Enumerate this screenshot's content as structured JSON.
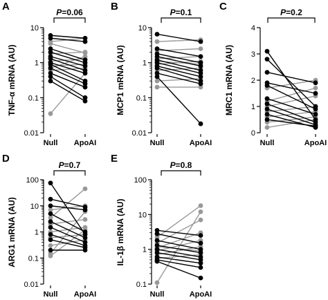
{
  "chart_data": [
    {
      "panel": "A",
      "type": "scatter",
      "ylabel": "TNF-α mRNA (AU)",
      "yscale": "log",
      "ylim": [
        0.01,
        10
      ],
      "yticks": [
        "10",
        "1",
        "0.1",
        "0.01"
      ],
      "categories": [
        "Null",
        "ApoAI"
      ],
      "p_label": "P",
      "p_value": "=0.06",
      "colors": {
        "black": "#000000",
        "gray": "#999999"
      },
      "pairs": [
        {
          "null": 6.0,
          "apoai": 5.0,
          "color": "black"
        },
        {
          "null": 5.0,
          "apoai": 4.0,
          "color": "black"
        },
        {
          "null": 4.0,
          "apoai": 5.0,
          "color": "gray"
        },
        {
          "null": 3.5,
          "apoai": 1.9,
          "color": "gray"
        },
        {
          "null": 2.5,
          "apoai": 1.2,
          "color": "black"
        },
        {
          "null": 2.0,
          "apoai": 1.0,
          "color": "black"
        },
        {
          "null": 1.8,
          "apoai": 2.0,
          "color": "gray"
        },
        {
          "null": 1.5,
          "apoai": 0.8,
          "color": "black"
        },
        {
          "null": 1.3,
          "apoai": 0.6,
          "color": "black"
        },
        {
          "null": 1.1,
          "apoai": 1.3,
          "color": "gray"
        },
        {
          "null": 1.0,
          "apoai": 0.5,
          "color": "black"
        },
        {
          "null": 0.9,
          "apoai": 0.3,
          "color": "black"
        },
        {
          "null": 0.8,
          "apoai": 0.9,
          "color": "gray"
        },
        {
          "null": 0.7,
          "apoai": 0.25,
          "color": "black"
        },
        {
          "null": 0.6,
          "apoai": 0.7,
          "color": "gray"
        },
        {
          "null": 0.5,
          "apoai": 0.2,
          "color": "black"
        },
        {
          "null": 0.4,
          "apoai": 0.1,
          "color": "black"
        },
        {
          "null": 0.3,
          "apoai": 0.08,
          "color": "black"
        },
        {
          "null": 0.7,
          "apoai": 1.5,
          "color": "gray"
        },
        {
          "null": 0.035,
          "apoai": 0.5,
          "color": "gray"
        }
      ]
    },
    {
      "panel": "B",
      "type": "scatter",
      "ylabel": "MCP1 mRNA (AU)",
      "yscale": "log",
      "ylim": [
        0.01,
        10
      ],
      "yticks": [
        "10",
        "1",
        "0.1",
        "0.01"
      ],
      "categories": [
        "Null",
        "ApoAI"
      ],
      "p_label": "P",
      "p_value": "=0.1",
      "colors": {
        "black": "#000000",
        "gray": "#999999"
      },
      "pairs": [
        {
          "null": 6.5,
          "apoai": 4.0,
          "color": "black"
        },
        {
          "null": 4.0,
          "apoai": 4.5,
          "color": "gray"
        },
        {
          "null": 2.5,
          "apoai": 1.5,
          "color": "black"
        },
        {
          "null": 2.2,
          "apoai": 2.5,
          "color": "gray"
        },
        {
          "null": 1.8,
          "apoai": 1.0,
          "color": "black"
        },
        {
          "null": 1.5,
          "apoai": 0.8,
          "color": "black"
        },
        {
          "null": 1.3,
          "apoai": 1.5,
          "color": "gray"
        },
        {
          "null": 1.2,
          "apoai": 0.6,
          "color": "black"
        },
        {
          "null": 1.0,
          "apoai": 0.5,
          "color": "black"
        },
        {
          "null": 0.9,
          "apoai": 1.1,
          "color": "gray"
        },
        {
          "null": 0.8,
          "apoai": 0.4,
          "color": "black"
        },
        {
          "null": 0.7,
          "apoai": 0.3,
          "color": "black"
        },
        {
          "null": 0.6,
          "apoai": 0.7,
          "color": "gray"
        },
        {
          "null": 0.5,
          "apoai": 0.25,
          "color": "black"
        },
        {
          "null": 0.4,
          "apoai": 0.018,
          "color": "black"
        },
        {
          "null": 0.3,
          "apoai": 0.35,
          "color": "gray"
        },
        {
          "null": 0.2,
          "apoai": 0.2,
          "color": "gray"
        },
        {
          "null": 1.1,
          "apoai": 0.9,
          "color": "gray"
        }
      ]
    },
    {
      "panel": "C",
      "type": "scatter",
      "ylabel": "MRC1 mRNA (AU)",
      "yscale": "linear",
      "ylim": [
        0,
        4
      ],
      "yticks": [
        "4",
        "3",
        "2",
        "1",
        "0"
      ],
      "categories": [
        "Null",
        "ApoAI"
      ],
      "p_label": "P",
      "p_value": "=0.2",
      "colors": {
        "black": "#000000",
        "gray": "#999999"
      },
      "pairs": [
        {
          "null": 3.1,
          "apoai": 0.5,
          "color": "black"
        },
        {
          "null": 2.8,
          "apoai": 1.0,
          "color": "black"
        },
        {
          "null": 2.3,
          "apoai": 1.9,
          "color": "black"
        },
        {
          "null": 1.9,
          "apoai": 1.5,
          "color": "black"
        },
        {
          "null": 1.8,
          "apoai": 0.9,
          "color": "black"
        },
        {
          "null": 1.7,
          "apoai": 2.0,
          "color": "gray"
        },
        {
          "null": 1.3,
          "apoai": 0.7,
          "color": "black"
        },
        {
          "null": 1.2,
          "apoai": 1.7,
          "color": "gray"
        },
        {
          "null": 1.1,
          "apoai": 0.4,
          "color": "black"
        },
        {
          "null": 1.0,
          "apoai": 1.4,
          "color": "gray"
        },
        {
          "null": 0.9,
          "apoai": 0.3,
          "color": "black"
        },
        {
          "null": 0.8,
          "apoai": 1.0,
          "color": "gray"
        },
        {
          "null": 0.7,
          "apoai": 0.2,
          "color": "black"
        },
        {
          "null": 0.6,
          "apoai": 0.8,
          "color": "gray"
        },
        {
          "null": 0.5,
          "apoai": 0.25,
          "color": "black"
        },
        {
          "null": 0.4,
          "apoai": 0.6,
          "color": "gray"
        },
        {
          "null": 0.2,
          "apoai": 0.5,
          "color": "gray"
        }
      ]
    },
    {
      "panel": "D",
      "type": "scatter",
      "ylabel": "ARG1 mRNA (AU)",
      "yscale": "log",
      "ylim": [
        0.01,
        100
      ],
      "yticks": [
        "100",
        "10",
        "1",
        "0.1",
        "0.01"
      ],
      "categories": [
        "Null",
        "ApoAI"
      ],
      "p_label": "P",
      "p_value": "=0.7",
      "colors": {
        "black": "#000000",
        "gray": "#999999"
      },
      "pairs": [
        {
          "null": 75,
          "apoai": 0.8,
          "color": "black"
        },
        {
          "null": 18,
          "apoai": 9.0,
          "color": "black"
        },
        {
          "null": 10,
          "apoai": 7.0,
          "color": "black"
        },
        {
          "null": 7,
          "apoai": 10,
          "color": "gray"
        },
        {
          "null": 5,
          "apoai": 1.0,
          "color": "black"
        },
        {
          "null": 3.5,
          "apoai": 45,
          "color": "gray"
        },
        {
          "null": 2.5,
          "apoai": 0.6,
          "color": "black"
        },
        {
          "null": 2.0,
          "apoai": 3.0,
          "color": "gray"
        },
        {
          "null": 1.5,
          "apoai": 0.4,
          "color": "black"
        },
        {
          "null": 1.0,
          "apoai": 1.5,
          "color": "gray"
        },
        {
          "null": 0.8,
          "apoai": 0.3,
          "color": "black"
        },
        {
          "null": 0.6,
          "apoai": 0.8,
          "color": "gray"
        },
        {
          "null": 0.5,
          "apoai": 0.25,
          "color": "black"
        },
        {
          "null": 0.3,
          "apoai": 0.5,
          "color": "gray"
        },
        {
          "null": 0.2,
          "apoai": 0.2,
          "color": "black"
        },
        {
          "null": 0.15,
          "apoai": 6.0,
          "color": "gray"
        },
        {
          "null": 0.12,
          "apoai": 1.2,
          "color": "gray"
        }
      ]
    },
    {
      "panel": "E",
      "type": "scatter",
      "ylabel": "IL-1β mRNA (AU)",
      "yscale": "log",
      "ylim": [
        0.1,
        100
      ],
      "yticks": [
        "100",
        "10",
        "1",
        "0.1"
      ],
      "categories": [
        "Null",
        "ApoAI"
      ],
      "p_label": "P",
      "p_value": "=0.8",
      "colors": {
        "black": "#000000",
        "gray": "#999999"
      },
      "pairs": [
        {
          "null": 3.5,
          "apoai": 2.5,
          "color": "black"
        },
        {
          "null": 2.8,
          "apoai": 1.5,
          "color": "black"
        },
        {
          "null": 2.2,
          "apoai": 18,
          "color": "gray"
        },
        {
          "null": 1.8,
          "apoai": 1.0,
          "color": "black"
        },
        {
          "null": 1.5,
          "apoai": 7.0,
          "color": "gray"
        },
        {
          "null": 1.3,
          "apoai": 0.8,
          "color": "black"
        },
        {
          "null": 1.1,
          "apoai": 3.0,
          "color": "gray"
        },
        {
          "null": 1.0,
          "apoai": 0.6,
          "color": "black"
        },
        {
          "null": 0.9,
          "apoai": 1.8,
          "color": "gray"
        },
        {
          "null": 0.8,
          "apoai": 0.5,
          "color": "black"
        },
        {
          "null": 0.7,
          "apoai": 1.2,
          "color": "gray"
        },
        {
          "null": 0.6,
          "apoai": 0.4,
          "color": "black"
        },
        {
          "null": 0.55,
          "apoai": 0.7,
          "color": "gray"
        },
        {
          "null": 0.5,
          "apoai": 0.3,
          "color": "black"
        },
        {
          "null": 0.45,
          "apoai": 0.15,
          "color": "black"
        },
        {
          "null": 0.11,
          "apoai": 12,
          "color": "gray"
        },
        {
          "null": 1.2,
          "apoai": 0.9,
          "color": "gray"
        }
      ]
    }
  ]
}
